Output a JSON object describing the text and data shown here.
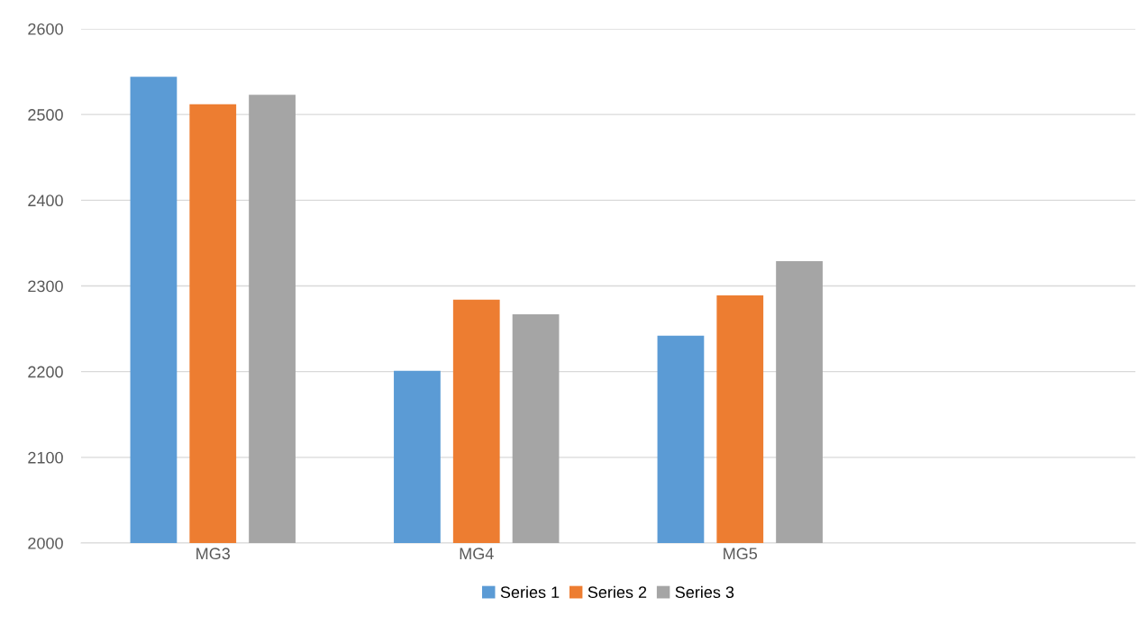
{
  "chart_data": {
    "type": "bar",
    "categories": [
      "MG3",
      "MG4",
      "MG5",
      null
    ],
    "series": [
      {
        "name": "Series 1",
        "color": "#5b9bd5",
        "values": [
          2544,
          2201,
          2242,
          null
        ]
      },
      {
        "name": "Series 2",
        "color": "#ed7d31",
        "values": [
          2512,
          2284,
          2289,
          null
        ]
      },
      {
        "name": "Series 3",
        "color": "#a5a5a5",
        "values": [
          2523,
          2267,
          2329,
          null
        ]
      }
    ],
    "ylim": [
      2000,
      2600
    ],
    "yticks": [
      2000,
      2100,
      2200,
      2300,
      2400,
      2500,
      2600
    ],
    "grid": "y",
    "legend": "bottom"
  }
}
